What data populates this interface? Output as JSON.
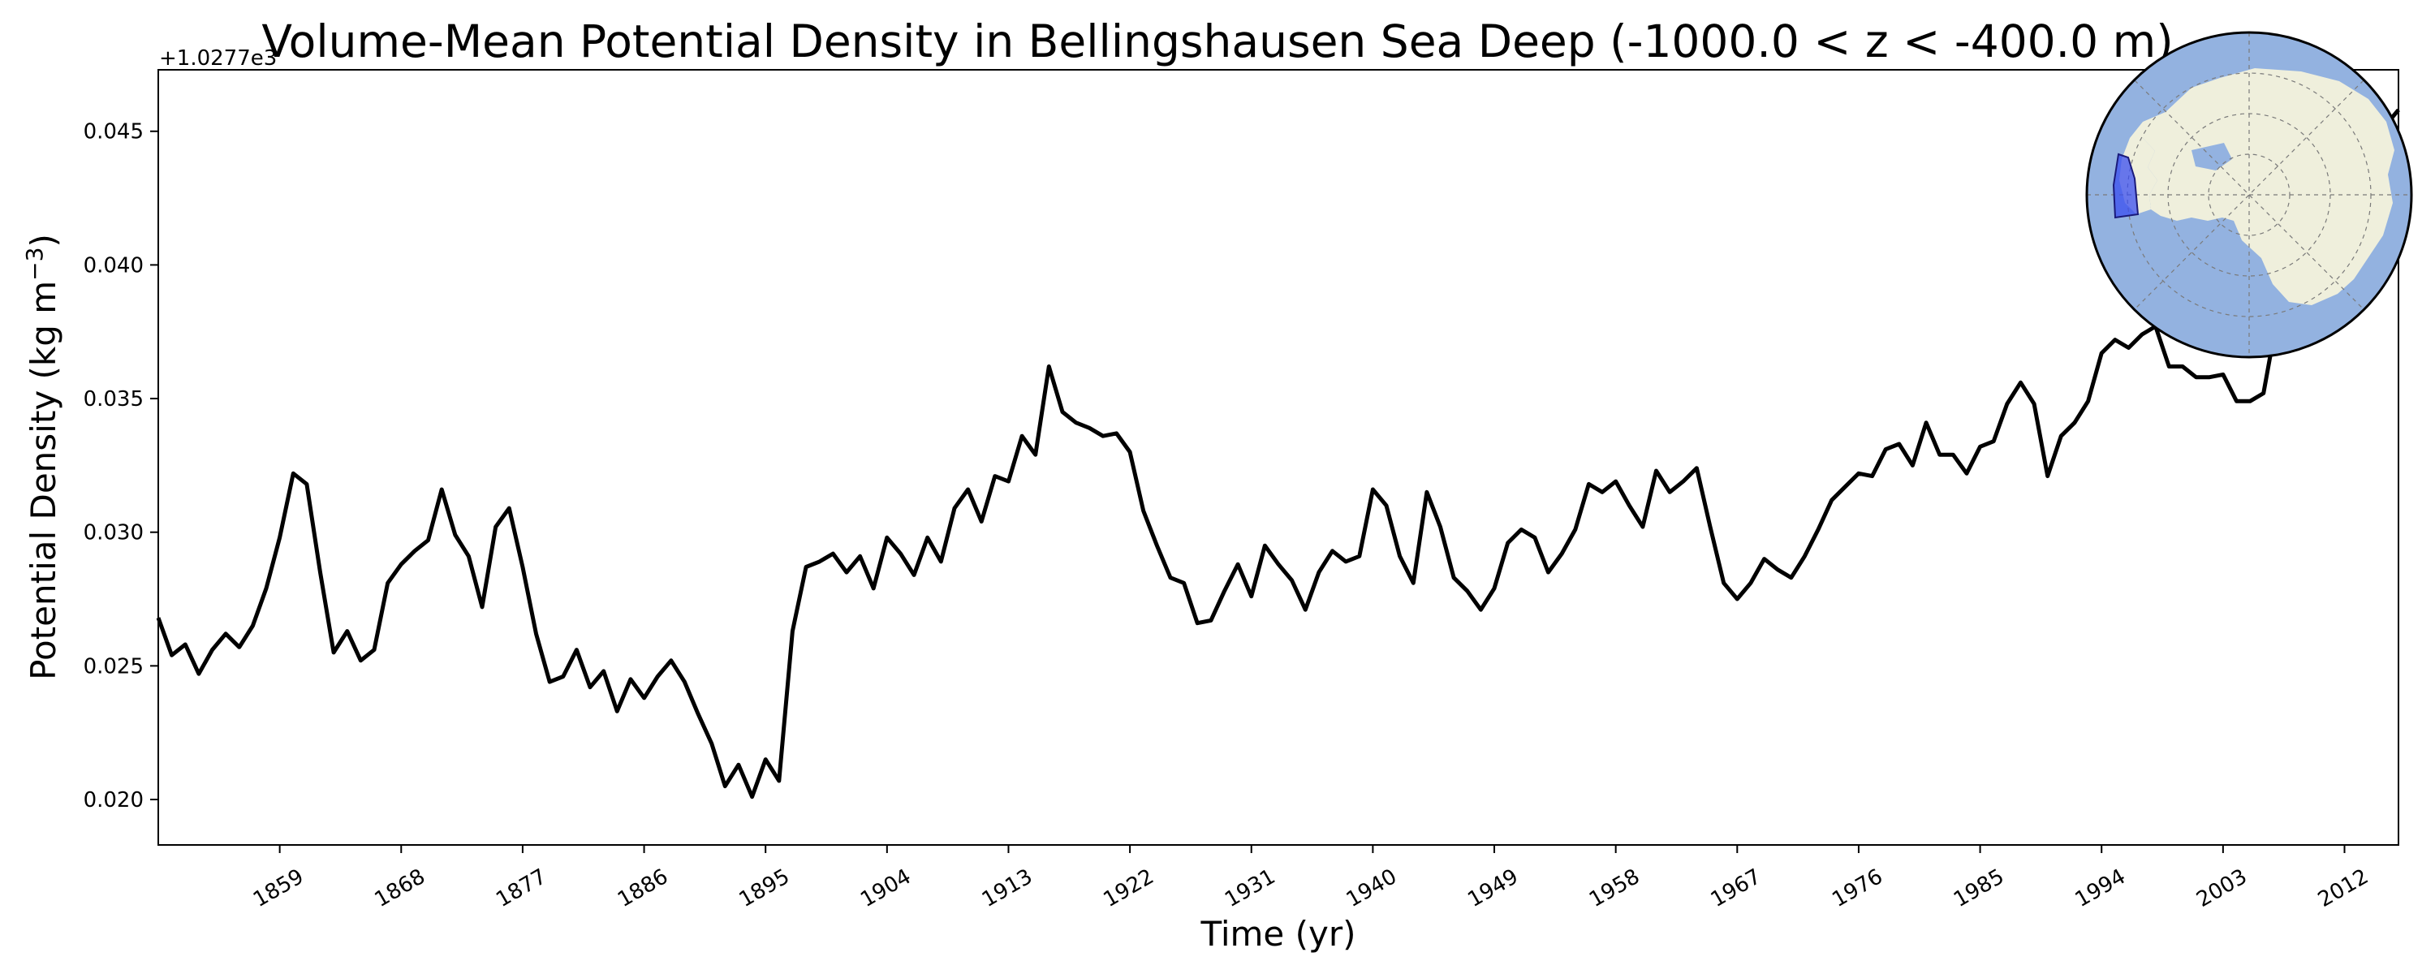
{
  "chart_data": {
    "type": "line",
    "title": "Volume-Mean Potential Density in Bellingshausen Sea Deep (-1000.0 < z < -400.0 m)",
    "xlabel": "Time (yr)",
    "ylabel": "Potential Density (kg m",
    "ylabel_sup": "−3",
    "ylabel_close": ")",
    "offset_label": "+1.0277e3",
    "xlim": [
      1850,
      2016
    ],
    "ylim": [
      0.0183,
      0.0473
    ],
    "x_ticks": [
      1859,
      1868,
      1877,
      1886,
      1895,
      1904,
      1913,
      1922,
      1931,
      1940,
      1949,
      1958,
      1967,
      1976,
      1985,
      1994,
      2003,
      2012
    ],
    "y_ticks": [
      0.02,
      0.025,
      0.03,
      0.035,
      0.04,
      0.045
    ],
    "y_tick_labels": [
      "0.020",
      "0.025",
      "0.030",
      "0.035",
      "0.040",
      "0.045"
    ],
    "grid": false,
    "line_color": "#000000",
    "series": [
      {
        "x": [
          1850,
          1851,
          1852,
          1853,
          1854,
          1855,
          1856,
          1857,
          1858,
          1859,
          1860,
          1861,
          1862,
          1863,
          1864,
          1865,
          1866,
          1867,
          1868,
          1869,
          1870,
          1871,
          1872,
          1873,
          1874,
          1875,
          1876,
          1877,
          1878,
          1879,
          1880,
          1881,
          1882,
          1883,
          1884,
          1885,
          1886,
          1887,
          1888,
          1889,
          1890,
          1891,
          1892,
          1893,
          1894,
          1895,
          1896,
          1897,
          1898,
          1899,
          1900,
          1901,
          1902,
          1903,
          1904,
          1905,
          1906,
          1907,
          1908,
          1909,
          1910,
          1911,
          1912,
          1913,
          1914,
          1915,
          1916,
          1917,
          1918,
          1919,
          1920,
          1921,
          1922,
          1923,
          1924,
          1925,
          1926,
          1927,
          1928,
          1929,
          1930,
          1931,
          1932,
          1933,
          1934,
          1935,
          1936,
          1937,
          1938,
          1939,
          1940,
          1941,
          1942,
          1943,
          1944,
          1945,
          1946,
          1947,
          1948,
          1949,
          1950,
          1951,
          1952,
          1953,
          1954,
          1955,
          1956,
          1957,
          1958,
          1959,
          1960,
          1961,
          1962,
          1963,
          1964,
          1965,
          1966,
          1967,
          1968,
          1969,
          1970,
          1971,
          1972,
          1973,
          1974,
          1975,
          1976,
          1977,
          1978,
          1979,
          1980,
          1981,
          1982,
          1983,
          1984,
          1985,
          1986,
          1987,
          1988,
          1989,
          1990,
          1991,
          1992,
          1993,
          1994,
          1995,
          1996,
          1997,
          1998,
          1999,
          2000,
          2001,
          2002,
          2003,
          2004,
          2005,
          2006,
          2007,
          2008,
          2009,
          2010,
          2011,
          2012,
          2013,
          2014,
          2015,
          2016
        ],
        "y": [
          0.0268,
          0.0254,
          0.0258,
          0.0247,
          0.0256,
          0.0262,
          0.0257,
          0.0265,
          0.0279,
          0.0298,
          0.0322,
          0.0318,
          0.0285,
          0.0255,
          0.0263,
          0.0252,
          0.0256,
          0.0281,
          0.0288,
          0.0293,
          0.0297,
          0.0316,
          0.0299,
          0.0291,
          0.0272,
          0.0302,
          0.0309,
          0.0287,
          0.0262,
          0.0244,
          0.0246,
          0.0256,
          0.0242,
          0.0248,
          0.0233,
          0.0245,
          0.0238,
          0.0246,
          0.0252,
          0.0244,
          0.0232,
          0.0221,
          0.0205,
          0.0213,
          0.0201,
          0.0215,
          0.0207,
          0.0263,
          0.0287,
          0.0289,
          0.0292,
          0.0285,
          0.0291,
          0.0279,
          0.0298,
          0.0292,
          0.0284,
          0.0298,
          0.0289,
          0.0309,
          0.0316,
          0.0304,
          0.0321,
          0.0319,
          0.0336,
          0.0329,
          0.0362,
          0.0345,
          0.0341,
          0.0339,
          0.0336,
          0.0337,
          0.033,
          0.0308,
          0.0295,
          0.0283,
          0.0281,
          0.0266,
          0.0267,
          0.0278,
          0.0288,
          0.0276,
          0.0295,
          0.0288,
          0.0282,
          0.0271,
          0.0285,
          0.0293,
          0.0289,
          0.0291,
          0.0316,
          0.031,
          0.0291,
          0.0281,
          0.0315,
          0.0302,
          0.0283,
          0.0278,
          0.0271,
          0.0279,
          0.0296,
          0.0301,
          0.0298,
          0.0285,
          0.0292,
          0.0301,
          0.0318,
          0.0315,
          0.0319,
          0.031,
          0.0302,
          0.0323,
          0.0315,
          0.0319,
          0.0324,
          0.0302,
          0.0281,
          0.0275,
          0.0281,
          0.029,
          0.0286,
          0.0283,
          0.0291,
          0.0301,
          0.0312,
          0.0317,
          0.0322,
          0.0321,
          0.0331,
          0.0333,
          0.0325,
          0.0341,
          0.0329,
          0.0329,
          0.0322,
          0.0332,
          0.0334,
          0.0348,
          0.0356,
          0.0348,
          0.0321,
          0.0336,
          0.0341,
          0.0349,
          0.0367,
          0.0372,
          0.0369,
          0.0374,
          0.0377,
          0.0362,
          0.0362,
          0.0358,
          0.0358,
          0.0359,
          0.0349,
          0.0349,
          0.0352,
          0.038,
          0.0395,
          0.041,
          0.0418,
          0.0426,
          0.0433,
          0.044,
          0.0446,
          0.0452,
          0.0458
        ]
      }
    ]
  },
  "inset_map": {
    "ocean_color": "#93b2e0",
    "land_color": "#efefdc",
    "region_color": "#3a4ef0"
  }
}
